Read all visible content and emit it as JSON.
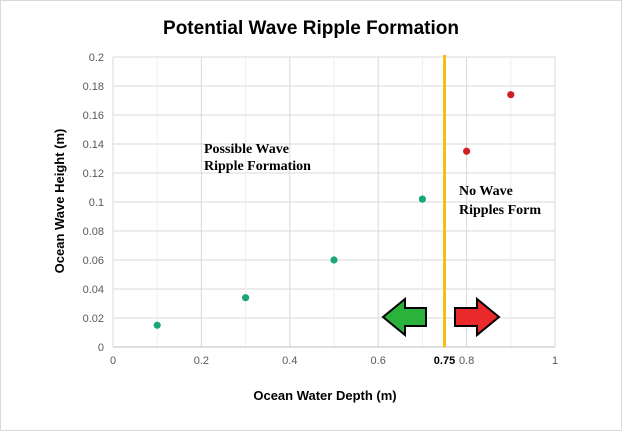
{
  "chart_data": {
    "type": "scatter",
    "title": "Potential Wave Ripple Formation",
    "xlabel": "Ocean Water Depth (m)",
    "ylabel": "Ocean Wave Height (m)",
    "xlim": [
      0,
      1
    ],
    "ylim": [
      0,
      0.2
    ],
    "x_ticks": [
      "0",
      "0.2",
      "0.4",
      "0.6",
      "0.75",
      "0.8",
      "1"
    ],
    "y_ticks": [
      "0",
      "0.02",
      "0.04",
      "0.06",
      "0.08",
      "0.1",
      "0.12",
      "0.14",
      "0.16",
      "0.18",
      "0.2"
    ],
    "grid": true,
    "series": [
      {
        "color": "#1aa67a",
        "points": [
          {
            "x": 0.1,
            "y": 0.015
          },
          {
            "x": 0.3,
            "y": 0.034
          },
          {
            "x": 0.5,
            "y": 0.06
          },
          {
            "x": 0.7,
            "y": 0.102
          }
        ]
      },
      {
        "color": "#d11f2a",
        "points": [
          {
            "x": 0.8,
            "y": 0.135
          },
          {
            "x": 0.9,
            "y": 0.174
          }
        ]
      }
    ],
    "threshold_line": {
      "x": 0.75,
      "color": "#f5bd16"
    },
    "annotations": {
      "left_region": [
        "Possible Wave",
        "Ripple Formation"
      ],
      "right_region": [
        "No Wave",
        "Ripples Form"
      ]
    },
    "arrows": {
      "left_color": "#2ab23c",
      "right_color": "#ea2a2a"
    }
  }
}
